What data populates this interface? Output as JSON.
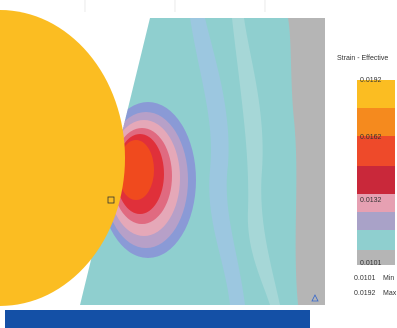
{
  "legend": {
    "title": "Strain - Effective",
    "ticks": [
      "0.0192",
      "0.0162",
      "0.0132",
      "0.0101"
    ],
    "min": {
      "value": "0.0101",
      "label": "Min"
    },
    "max": {
      "value": "0.0192",
      "label": "Max"
    }
  }
}
